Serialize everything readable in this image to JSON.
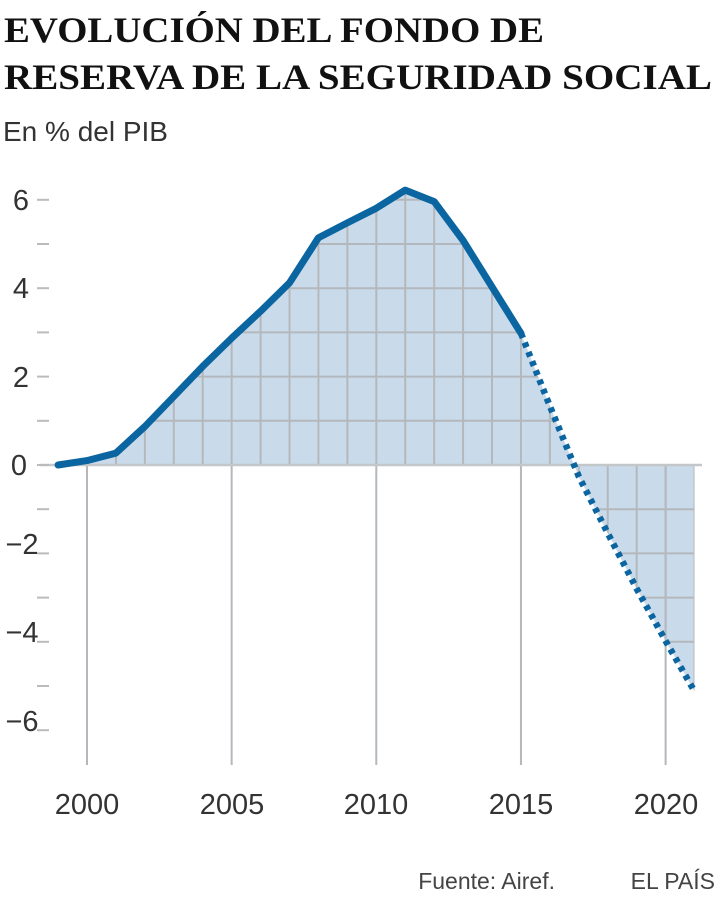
{
  "chart_data": {
    "type": "area",
    "title_lines": [
      "EVOLUCIÓN DEL FONDO DE",
      "RESERVA DE LA SEGURIDAD SOCIAL"
    ],
    "subtitle": "En % del PIB",
    "xlabel": "",
    "ylabel": "",
    "xlim": [
      1999,
      2021
    ],
    "ylim": [
      -7,
      6.5
    ],
    "x_ticks": [
      "2000",
      "2005",
      "2010",
      "2015",
      "2020"
    ],
    "y_ticks": [
      "6",
      "4",
      "2",
      "0",
      "−2",
      "−4",
      "−6"
    ],
    "grid": true,
    "series": [
      {
        "style": "solid",
        "x": [
          1999,
          2000,
          2001,
          2002,
          2003,
          2004,
          2005,
          2006,
          2007,
          2008,
          2009,
          2010,
          2011,
          2012,
          2013,
          2014,
          2015
        ],
        "values": [
          0.0,
          0.1,
          0.27,
          0.87,
          1.55,
          2.23,
          2.87,
          3.48,
          4.12,
          5.14,
          5.48,
          5.81,
          6.22,
          5.96,
          5.08,
          4.03,
          2.98
        ]
      },
      {
        "style": "dotted",
        "x": [
          2015,
          2016,
          2017,
          2018,
          2019,
          2020,
          2021
        ],
        "values": [
          2.98,
          1.33,
          -0.26,
          -1.54,
          -2.8,
          -3.98,
          -5.12
        ]
      }
    ],
    "source": "Fuente: Airef.",
    "publisher": "EL PAÍS",
    "colors": {
      "line": "#0b65a0",
      "fill": "#c9dbea",
      "grid": "#b4b8bc"
    }
  }
}
